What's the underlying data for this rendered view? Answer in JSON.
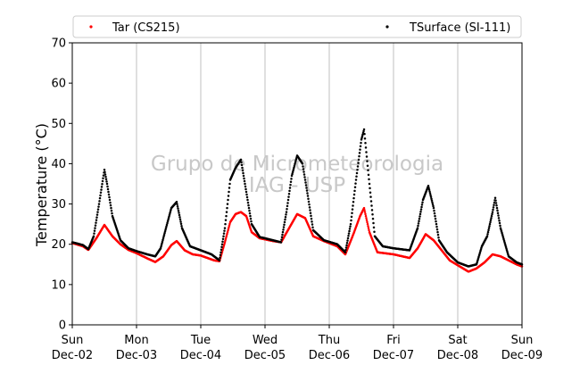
{
  "chart_data": {
    "type": "scatter",
    "ylabel": "Temperature (°C)",
    "ylim": [
      0,
      70
    ],
    "yticks": [
      0,
      10,
      20,
      30,
      40,
      50,
      60,
      70
    ],
    "xlim": [
      "2018-12-02",
      "2018-12-09"
    ],
    "x_ticks": [
      {
        "day": "Sun",
        "date": "Dec-02"
      },
      {
        "day": "Mon",
        "date": "Dec-03"
      },
      {
        "day": "Tue",
        "date": "Dec-04"
      },
      {
        "day": "Wed",
        "date": "Dec-05"
      },
      {
        "day": "Thu",
        "date": "Dec-06"
      },
      {
        "day": "Fri",
        "date": "Dec-07"
      },
      {
        "day": "Sat",
        "date": "Dec-08"
      },
      {
        "day": "Sun",
        "date": "Dec-09"
      }
    ],
    "grid": "vertical",
    "legend_position": "top",
    "watermark": [
      "Grupo de Micrometeorologia",
      "IAG - USP"
    ],
    "series": [
      {
        "name": "Tar (CS215)",
        "color": "#ff0000",
        "points": [
          [
            "2018-12-02 00:00",
            20.3
          ],
          [
            "2018-12-02 04:00",
            19.5
          ],
          [
            "2018-12-02 06:00",
            18.6
          ],
          [
            "2018-12-02 09:00",
            21.5
          ],
          [
            "2018-12-02 12:00",
            24.8
          ],
          [
            "2018-12-02 15:00",
            22.0
          ],
          [
            "2018-12-02 18:00",
            20.0
          ],
          [
            "2018-12-02 21:00",
            18.6
          ],
          [
            "2018-12-03 00:00",
            17.8
          ],
          [
            "2018-12-03 04:00",
            16.5
          ],
          [
            "2018-12-03 07:00",
            15.6
          ],
          [
            "2018-12-03 10:00",
            17.0
          ],
          [
            "2018-12-03 13:00",
            19.8
          ],
          [
            "2018-12-03 15:00",
            20.8
          ],
          [
            "2018-12-03 18:00",
            18.5
          ],
          [
            "2018-12-03 21:00",
            17.5
          ],
          [
            "2018-12-04 00:00",
            17.2
          ],
          [
            "2018-12-04 05:00",
            16.0
          ],
          [
            "2018-12-04 07:00",
            15.8
          ],
          [
            "2018-12-04 09:00",
            20.5
          ],
          [
            "2018-12-04 11:00",
            25.5
          ],
          [
            "2018-12-04 13:00",
            27.5
          ],
          [
            "2018-12-04 15:00",
            28.0
          ],
          [
            "2018-12-04 17:00",
            27.0
          ],
          [
            "2018-12-04 19:00",
            23.0
          ],
          [
            "2018-12-04 22:00",
            21.5
          ],
          [
            "2018-12-05 03:00",
            20.8
          ],
          [
            "2018-12-05 06:00",
            20.5
          ],
          [
            "2018-12-05 09:00",
            24.0
          ],
          [
            "2018-12-05 12:00",
            27.5
          ],
          [
            "2018-12-05 15:00",
            26.5
          ],
          [
            "2018-12-05 18:00",
            22.0
          ],
          [
            "2018-12-05 22:00",
            20.8
          ],
          [
            "2018-12-06 03:00",
            19.5
          ],
          [
            "2018-12-06 06:00",
            17.5
          ],
          [
            "2018-12-06 09:00",
            22.5
          ],
          [
            "2018-12-06 11:30",
            27.0
          ],
          [
            "2018-12-06 13:00",
            29.0
          ],
          [
            "2018-12-06 15:00",
            23.0
          ],
          [
            "2018-12-06 18:00",
            18.0
          ],
          [
            "2018-12-07 00:00",
            17.5
          ],
          [
            "2018-12-07 06:00",
            16.6
          ],
          [
            "2018-12-07 09:00",
            19.0
          ],
          [
            "2018-12-07 12:00",
            22.5
          ],
          [
            "2018-12-07 15:00",
            21.0
          ],
          [
            "2018-12-07 18:00",
            18.5
          ],
          [
            "2018-12-07 21:00",
            16.0
          ],
          [
            "2018-12-08 00:00",
            14.8
          ],
          [
            "2018-12-08 04:00",
            13.2
          ],
          [
            "2018-12-08 07:00",
            14.0
          ],
          [
            "2018-12-08 10:00",
            15.5
          ],
          [
            "2018-12-08 13:00",
            17.5
          ],
          [
            "2018-12-08 16:00",
            17.0
          ],
          [
            "2018-12-08 19:00",
            16.0
          ],
          [
            "2018-12-08 22:00",
            15.0
          ],
          [
            "2018-12-09 00:00",
            14.5
          ]
        ]
      },
      {
        "name": "TSurface (SI-111)",
        "color": "#000000",
        "points": [
          [
            "2018-12-02 00:00",
            20.5
          ],
          [
            "2018-12-02 04:00",
            19.8
          ],
          [
            "2018-12-02 06:00",
            18.8
          ],
          [
            "2018-12-02 08:00",
            22.0
          ],
          [
            "2018-12-02 10:00",
            30.0
          ],
          [
            "2018-12-02 12:00",
            38.5
          ],
          [
            "2018-12-02 13:00",
            35.0
          ],
          [
            "2018-12-02 15:00",
            27.0
          ],
          [
            "2018-12-02 18:00",
            21.0
          ],
          [
            "2018-12-02 21:00",
            19.0
          ],
          [
            "2018-12-03 00:00",
            18.3
          ],
          [
            "2018-12-03 04:00",
            17.5
          ],
          [
            "2018-12-03 07:00",
            17.0
          ],
          [
            "2018-12-03 09:00",
            19.0
          ],
          [
            "2018-12-03 11:00",
            24.0
          ],
          [
            "2018-12-03 13:00",
            29.0
          ],
          [
            "2018-12-03 15:00",
            30.5
          ],
          [
            "2018-12-03 17:00",
            24.0
          ],
          [
            "2018-12-03 20:00",
            19.5
          ],
          [
            "2018-12-04 00:00",
            18.5
          ],
          [
            "2018-12-04 04:00",
            17.5
          ],
          [
            "2018-12-04 07:00",
            16.0
          ],
          [
            "2018-12-04 09:00",
            24.0
          ],
          [
            "2018-12-04 11:00",
            36.0
          ],
          [
            "2018-12-04 13:00",
            39.0
          ],
          [
            "2018-12-04 15:00",
            41.0
          ],
          [
            "2018-12-04 17:00",
            33.0
          ],
          [
            "2018-12-04 19:00",
            25.0
          ],
          [
            "2018-12-04 22:00",
            21.8
          ],
          [
            "2018-12-05 03:00",
            21.0
          ],
          [
            "2018-12-05 06:00",
            20.5
          ],
          [
            "2018-12-05 08:00",
            28.0
          ],
          [
            "2018-12-05 10:00",
            37.0
          ],
          [
            "2018-12-05 12:00",
            42.0
          ],
          [
            "2018-12-05 14:00",
            40.0
          ],
          [
            "2018-12-05 16:00",
            32.0
          ],
          [
            "2018-12-05 18:00",
            23.5
          ],
          [
            "2018-12-05 22:00",
            21.0
          ],
          [
            "2018-12-06 03:00",
            20.0
          ],
          [
            "2018-12-06 06:00",
            18.0
          ],
          [
            "2018-12-06 08:00",
            25.0
          ],
          [
            "2018-12-06 10:00",
            36.0
          ],
          [
            "2018-12-06 12:00",
            46.0
          ],
          [
            "2018-12-06 13:00",
            48.5
          ],
          [
            "2018-12-06 15:00",
            35.0
          ],
          [
            "2018-12-06 17:00",
            22.0
          ],
          [
            "2018-12-06 20:00",
            19.5
          ],
          [
            "2018-12-07 00:00",
            19.0
          ],
          [
            "2018-12-07 06:00",
            18.5
          ],
          [
            "2018-12-07 09:00",
            24.0
          ],
          [
            "2018-12-07 11:00",
            31.0
          ],
          [
            "2018-12-07 13:00",
            34.5
          ],
          [
            "2018-12-07 15:00",
            29.0
          ],
          [
            "2018-12-07 17:00",
            21.0
          ],
          [
            "2018-12-07 20:00",
            18.0
          ],
          [
            "2018-12-08 00:00",
            15.5
          ],
          [
            "2018-12-08 04:00",
            14.5
          ],
          [
            "2018-12-08 07:00",
            15.0
          ],
          [
            "2018-12-08 09:00",
            19.5
          ],
          [
            "2018-12-08 11:00",
            22.0
          ],
          [
            "2018-12-08 13:00",
            28.0
          ],
          [
            "2018-12-08 14:00",
            31.5
          ],
          [
            "2018-12-08 16:00",
            24.0
          ],
          [
            "2018-12-08 19:00",
            17.0
          ],
          [
            "2018-12-08 22:00",
            15.5
          ],
          [
            "2018-12-09 00:00",
            15.0
          ]
        ]
      }
    ]
  }
}
